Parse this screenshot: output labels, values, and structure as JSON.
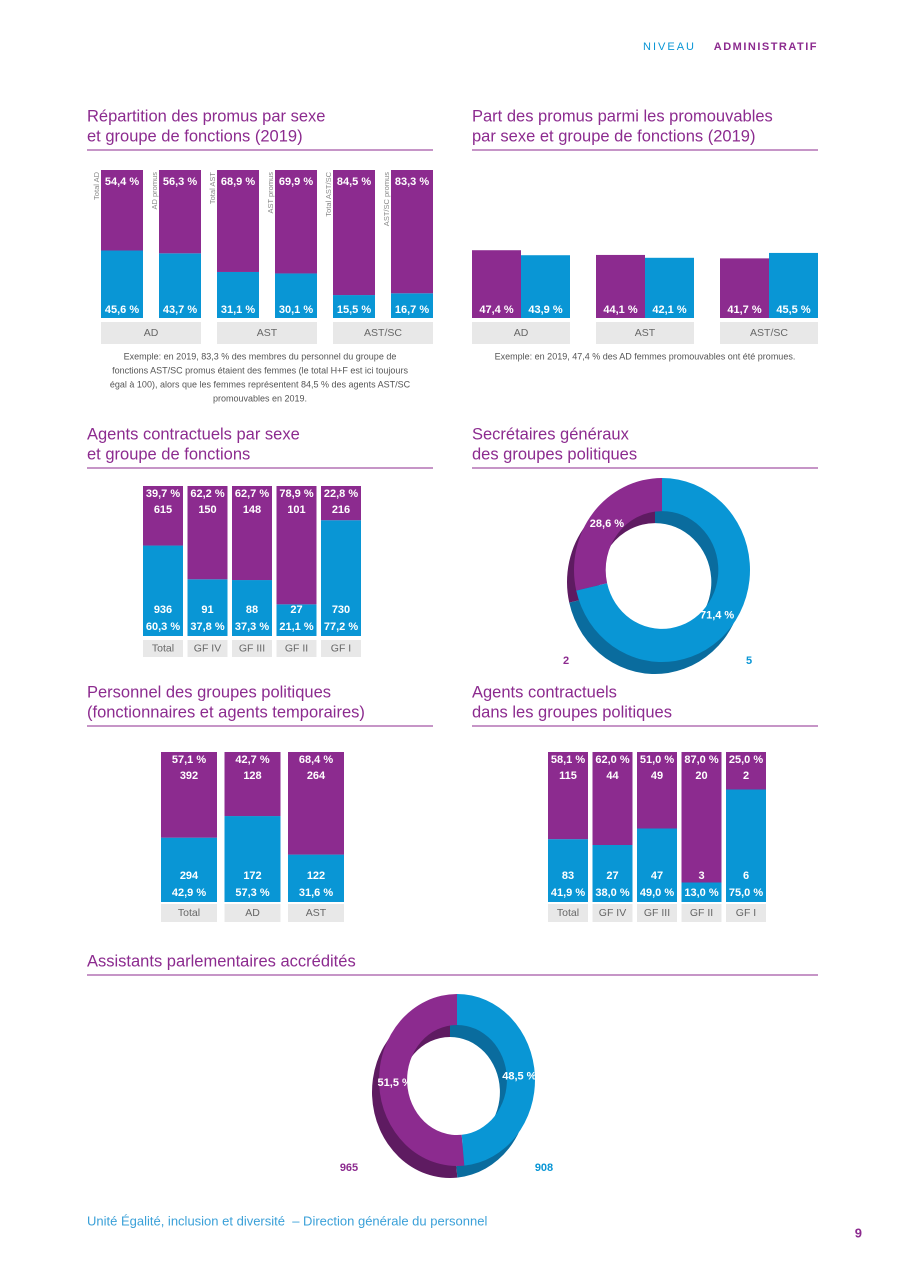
{
  "header": {
    "label1": "NIVEAU",
    "label2": "ADMINISTRATIF"
  },
  "chart_data": [
    {
      "type": "stacked_bar",
      "title": [
        "Répartition des promus par sexe",
        "et groupe de fonctions (2019)"
      ],
      "categories": [
        "Total AD",
        "AD promus",
        "Total AST",
        "AST promus",
        "Total AST/SC",
        "AST/SC promus"
      ],
      "groups": [
        "AD",
        "AST",
        "AST/SC"
      ],
      "series": [
        {
          "color": "#8c2b8f",
          "values": [
            54.4,
            56.3,
            68.9,
            69.9,
            84.5,
            83.3
          ],
          "value_labels": [
            "54,4 %",
            "56,3 %",
            "68,9 %",
            "69,9 %",
            "84,5 %",
            "83,3 %"
          ]
        },
        {
          "color": "#0996d5",
          "values": [
            45.6,
            43.7,
            31.1,
            30.1,
            15.5,
            16.7
          ],
          "value_labels": [
            "45,6 %",
            "43,7 %",
            "31,1 %",
            "30,1 %",
            "15,5 %",
            "16,7 %"
          ]
        }
      ],
      "note": [
        "Exemple: en 2019, 83,3 % des membres du personnel du groupe de",
        "fonctions AST/SC promus étaient des femmes (le total H+F est ici toujours",
        "égal à 100), alors que les femmes représentent 84,5 % des agents AST/SC",
        "promouvables en 2019."
      ]
    },
    {
      "type": "grouped_bar",
      "title": [
        "Part des promus parmi les promouvables",
        "par sexe et groupe de fonctions (2019)"
      ],
      "categories": [
        "AD",
        "AST",
        "AST/SC"
      ],
      "series": [
        {
          "color": "#8c2b8f",
          "values": [
            47.4,
            44.1,
            41.7
          ],
          "value_labels": [
            "47,4 %",
            "44,1 %",
            "41,7 %"
          ]
        },
        {
          "color": "#0996d5",
          "values": [
            43.9,
            42.1,
            45.5
          ],
          "value_labels": [
            "43,9 %",
            "42,1 %",
            "45,5 %"
          ]
        }
      ],
      "note": [
        "Exemple: en 2019, 47,4 % des AD femmes promouvables ont été promues."
      ]
    },
    {
      "type": "stacked_bar",
      "title": [
        "Agents contractuels par sexe",
        "et groupe de fonctions"
      ],
      "categories": [
        "Total",
        "GF IV",
        "GF III",
        "GF II",
        "GF I"
      ],
      "series": [
        {
          "color": "#8c2b8f",
          "values": [
            39.7,
            62.2,
            62.7,
            78.9,
            22.8
          ],
          "value_labels": [
            "39,7 %",
            "62,2 %",
            "62,7 %",
            "78,9 %",
            "22,8 %"
          ],
          "counts": [
            615,
            150,
            148,
            101,
            216
          ]
        },
        {
          "color": "#0996d5",
          "values": [
            60.3,
            37.8,
            37.3,
            21.1,
            77.2
          ],
          "value_labels": [
            "60,3 %",
            "37,8 %",
            "37,3 %",
            "21,1 %",
            "77,2 %"
          ],
          "counts": [
            936,
            91,
            88,
            27,
            730
          ]
        }
      ]
    },
    {
      "type": "donut",
      "title": [
        "Secrétaires généraux",
        "des groupes politiques"
      ],
      "values": [
        28.6,
        71.4
      ],
      "value_labels": [
        "28,6 %",
        "71,4 %"
      ],
      "counts": [
        2,
        5
      ],
      "colors": [
        "#8c2b8f",
        "#0996d5"
      ]
    },
    {
      "type": "stacked_bar",
      "title": [
        "Personnel des groupes politiques",
        "(fonctionnaires et agents temporaires)"
      ],
      "categories": [
        "Total",
        "AD",
        "AST"
      ],
      "series": [
        {
          "color": "#8c2b8f",
          "values": [
            57.1,
            42.7,
            68.4
          ],
          "value_labels": [
            "57,1 %",
            "42,7 %",
            "68,4 %"
          ],
          "counts": [
            392,
            128,
            264
          ]
        },
        {
          "color": "#0996d5",
          "values": [
            42.9,
            57.3,
            31.6
          ],
          "value_labels": [
            "42,9 %",
            "57,3 %",
            "31,6 %"
          ],
          "counts": [
            294,
            172,
            122
          ]
        }
      ]
    },
    {
      "type": "stacked_bar",
      "title": [
        "Agents contractuels",
        "dans les groupes politiques"
      ],
      "categories": [
        "Total",
        "GF IV",
        "GF III",
        "GF II",
        "GF I"
      ],
      "series": [
        {
          "color": "#8c2b8f",
          "values": [
            58.1,
            62.0,
            51.0,
            87.0,
            25.0
          ],
          "value_labels": [
            "58,1 %",
            "62,0 %",
            "51,0 %",
            "87,0 %",
            "25,0 %"
          ],
          "counts": [
            115,
            44,
            49,
            20,
            2
          ]
        },
        {
          "color": "#0996d5",
          "values": [
            41.9,
            38.0,
            49.0,
            13.0,
            75.0
          ],
          "value_labels": [
            "41,9 %",
            "38,0 %",
            "49,0 %",
            "13,0 %",
            "75,0 %"
          ],
          "counts": [
            83,
            27,
            47,
            3,
            6
          ]
        }
      ]
    },
    {
      "type": "donut",
      "title": [
        "Assistants parlementaires accrédités"
      ],
      "values": [
        51.5,
        48.5
      ],
      "value_labels": [
        "51,5 %",
        "48,5 %"
      ],
      "counts": [
        965,
        908
      ],
      "colors": [
        "#8c2b8f",
        "#0996d5"
      ]
    }
  ],
  "footer": {
    "text": "Unité Égalité, inclusion et diversité  – Direction générale du personnel",
    "page": "9"
  }
}
